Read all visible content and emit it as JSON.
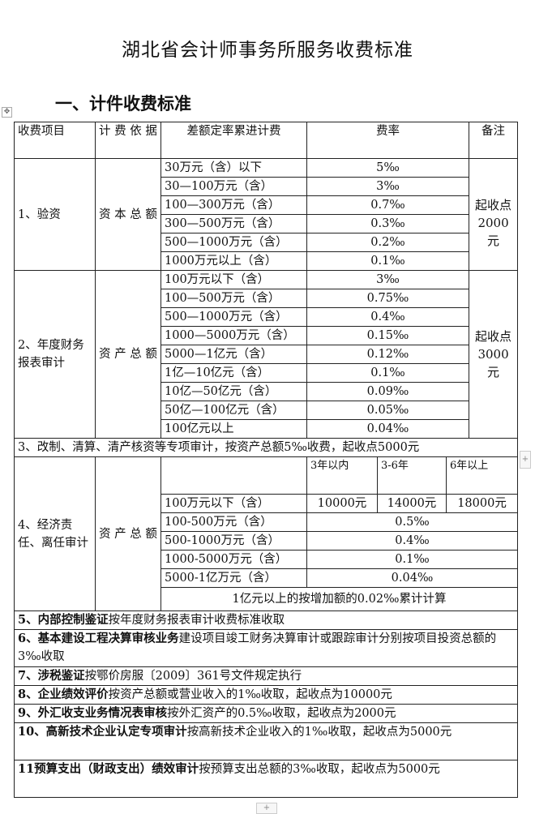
{
  "title": "湖北省会计师事务所服务收费标准",
  "heading": "一、计件收费标准",
  "header": {
    "item": "收费项目",
    "basis": "计 费 依 据",
    "range": "差额定率累进计费",
    "rate": "费率",
    "note": "备注"
  },
  "s1": {
    "item": "1、验资",
    "basis": "资 本 总 额",
    "note": "起收点2000元",
    "rows": [
      [
        "30万元（含）以下",
        "5‰"
      ],
      [
        "30—100万元（含）",
        "3‰"
      ],
      [
        "100—300万元（含）",
        "0.7‰"
      ],
      [
        "300—500万元（含）",
        "0.3‰"
      ],
      [
        "500—1000万元（含）",
        "0.2‰"
      ],
      [
        "1000万元以上（含）",
        "0.1‰"
      ]
    ]
  },
  "s2": {
    "item": "2、年度财务报表审计",
    "basis": "资 产 总 额",
    "note": "起收点3000元",
    "rows": [
      [
        "100万元以下（含）",
        "3‰"
      ],
      [
        "100—500万元（含）",
        "0.75‰"
      ],
      [
        "500—1000万元（含）",
        "0.4‰"
      ],
      [
        "1000—5000万元（含）",
        "0.15‰"
      ],
      [
        "5000—1亿元（含）",
        "0.12‰"
      ],
      [
        "1亿—10亿元（含）",
        "0.1‰"
      ],
      [
        "10亿—50亿元（含）",
        "0.09‰"
      ],
      [
        "50亿—100亿元（含）",
        "0.05‰"
      ],
      [
        "100亿元以上",
        "0.04‰"
      ]
    ]
  },
  "s3": "3、改制、清算、清产核资等专项审计，按资产总额5‰收费，起收点5000元",
  "s4": {
    "item": "4、经济责任、离任审计",
    "basis": "资 产 总 额",
    "periods": [
      "3年以内",
      "3-6年",
      "6年以上"
    ],
    "first": {
      "range": "100万元以下（含）",
      "fees": [
        "10000元",
        "14000元",
        "18000元"
      ]
    },
    "rows": [
      [
        "100-500万元（含）",
        "0.5‰"
      ],
      [
        "500-1000万元（含）",
        "0.4‰"
      ],
      [
        "1000-5000万元（含）",
        "0.1‰"
      ],
      [
        "5000-1亿万元（含）",
        "0.04‰"
      ]
    ],
    "footer": "1亿元以上的按增加额的0.02‰累计计算"
  },
  "items": [
    {
      "bold": "5、内部控制鉴证",
      "text": "按年度财务报表审计收费标准收取"
    },
    {
      "bold": "6、基本建设工程决算审核业务",
      "text": "建设项目竣工财务决算审计或跟踪审计分别按项目投资总额的3‰收取"
    },
    {
      "bold": "7、涉税鉴证",
      "text": "按鄂价房服〔2009〕361号文件规定执行"
    },
    {
      "bold": "8、企业绩效评价",
      "text": "按资产总额或营业收入的1‰收取，起收点为10000元"
    },
    {
      "bold": "9、外汇收支业务情况表审核",
      "text": "按外汇资产的0.5‰收取，起收点为2000元"
    },
    {
      "bold": "10、高新技术企业认定专项审计",
      "text": "按高新技术企业收入的1‰收取，起收点为5000元"
    },
    {
      "bold": "11预算支出（财政支出）绩效审计",
      "text": "按预算支出总额的3‰收取，起收点为5000元"
    }
  ]
}
